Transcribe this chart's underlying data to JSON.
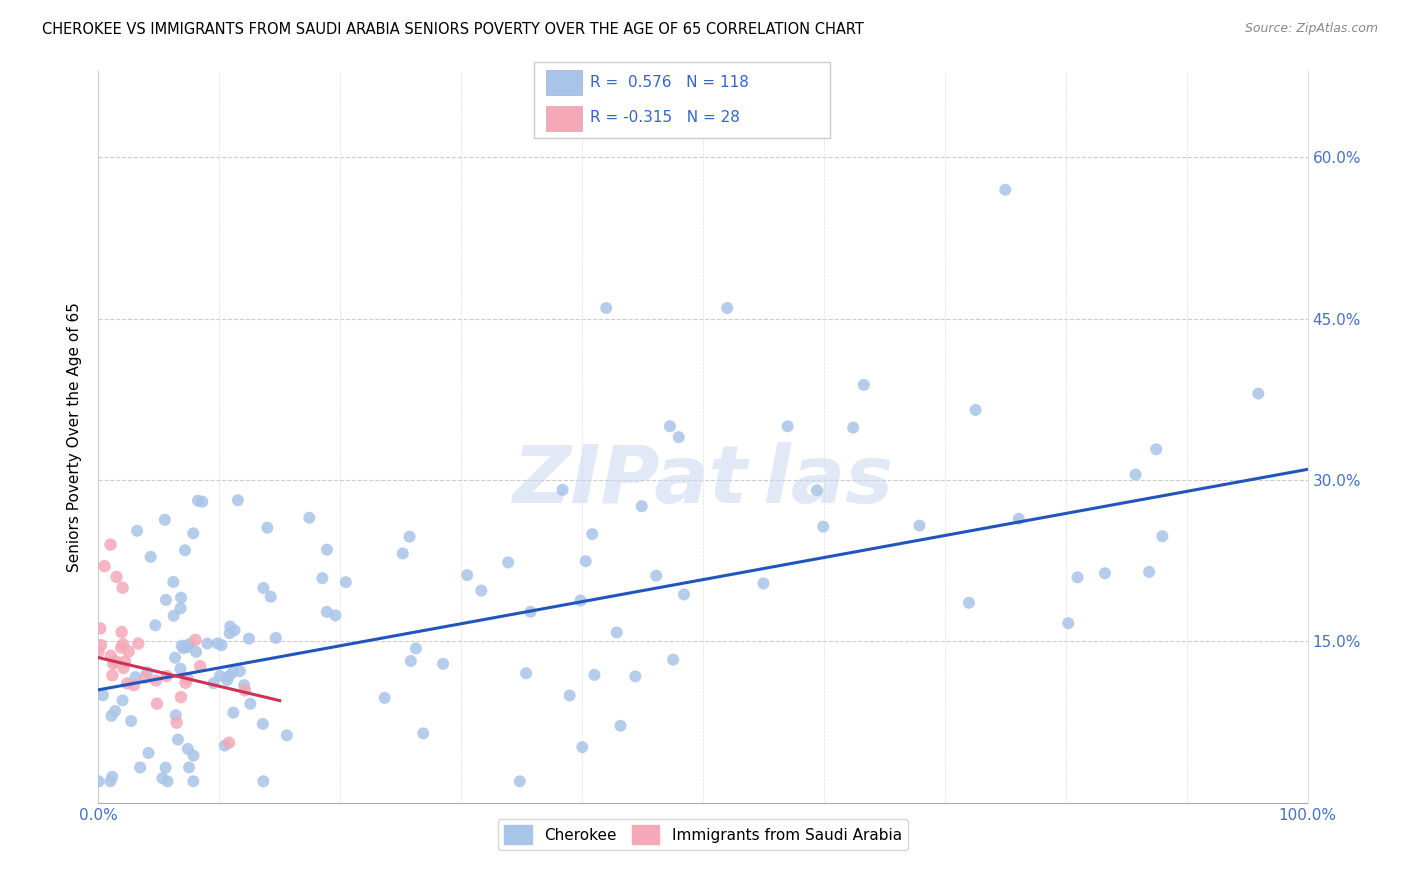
{
  "title": "CHEROKEE VS IMMIGRANTS FROM SAUDI ARABIA SENIORS POVERTY OVER THE AGE OF 65 CORRELATION CHART",
  "source": "Source: ZipAtlas.com",
  "ylabel": "Seniors Poverty Over the Age of 65",
  "xlim": [
    0,
    100
  ],
  "ylim": [
    0,
    68
  ],
  "legend_r_blue": "0.576",
  "legend_n_blue": "118",
  "legend_r_pink": "-0.315",
  "legend_n_pink": "28",
  "blue_color": "#a8c4e8",
  "pink_color": "#f4a8b8",
  "trend_blue": "#2255bb",
  "trend_pink": "#cc3355",
  "blue_trend_x0": 0,
  "blue_trend_y0": 10.5,
  "blue_trend_x1": 100,
  "blue_trend_y1": 31.0,
  "pink_trend_x0": 0,
  "pink_trend_y0": 13.5,
  "pink_trend_x1": 15,
  "pink_trend_y1": 9.5
}
